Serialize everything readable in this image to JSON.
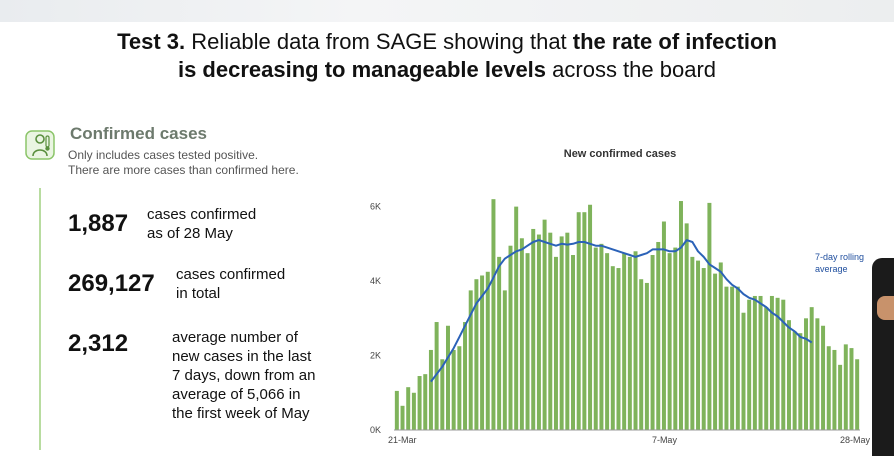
{
  "headline": {
    "prefix_bold": "Test 3.",
    "part1": " Reliable data from SAGE showing that ",
    "bold1": "the rate of infection",
    "bold2": "is decreasing to manageable levels",
    "suffix": " across the board"
  },
  "panel": {
    "icon": "thermometer-person-icon",
    "title": "Confirmed cases",
    "subtitle_line1": "Only includes cases tested positive.",
    "subtitle_line2": "There are more cases than confirmed here."
  },
  "stats": [
    {
      "value": "1,887",
      "label_line1": "cases confirmed",
      "label_line2": "as of 28 May"
    },
    {
      "value": "269,127",
      "label_line1": "cases confirmed",
      "label_line2": "in total"
    },
    {
      "value": "2,312",
      "label_line1": "average number of",
      "label_line2": "new cases in the last",
      "label_line3": "7 days, down from an",
      "label_line4": "average of 5,066 in",
      "label_line5": "the first week of May"
    }
  ],
  "colors": {
    "bar": "#7fb35b",
    "rolling_line": "#2b62b8",
    "accent_green": "#8cc56a"
  },
  "chart_data": {
    "type": "bar",
    "title": "New confirmed cases",
    "x_start": "21-Mar",
    "x_ticks": [
      "21-Mar",
      "7-May",
      "28-May"
    ],
    "y_ticks": [
      "0K",
      "2K",
      "4K",
      "6K"
    ],
    "ylim": [
      0,
      6500
    ],
    "annotation": [
      "7-day rolling",
      "average"
    ],
    "series": [
      {
        "kind": "bar",
        "values": [
          1050,
          650,
          1150,
          1000,
          1450,
          1500,
          2150,
          2900,
          1900,
          2800,
          2150,
          2250,
          2900,
          3750,
          4050,
          4150,
          4250,
          6200,
          4650,
          3750,
          4950,
          6000,
          5150,
          4750,
          5400,
          5250,
          5650,
          5300,
          4650,
          5200,
          5300,
          4700,
          5850,
          5850,
          6050,
          4900,
          5000,
          4750,
          4400,
          4350,
          4750,
          4650,
          4800,
          4050,
          3950,
          4700,
          5050,
          5600,
          4750,
          4900,
          6150,
          5550,
          4650,
          4550,
          4350,
          6100,
          4200,
          4500,
          3850,
          3850,
          3850,
          3150,
          3500,
          3600,
          3600,
          3300,
          3600,
          3550,
          3500,
          2950,
          2650,
          2600,
          3000,
          3300,
          3000,
          2800,
          2250,
          2150,
          1750,
          2300,
          2200,
          1900
        ]
      },
      {
        "kind": "line",
        "name": "7-day rolling average",
        "values": [
          1300,
          1500,
          1700,
          1950,
          2200,
          2500,
          2800,
          3100,
          3400,
          3600,
          3800,
          4100,
          4400,
          4600,
          4700,
          4800,
          4850,
          4950,
          5050,
          5100,
          5050,
          5000,
          4950,
          5000,
          4980,
          5000,
          5050,
          5050,
          5000,
          4950,
          4950,
          4900,
          4850,
          4800,
          4750,
          4700,
          4650,
          4700,
          4750,
          4850,
          4850,
          4850,
          4800,
          4800,
          4900,
          5100,
          5050,
          4800,
          4650,
          4450,
          4350,
          4250,
          4050,
          3900,
          3800,
          3650,
          3550,
          3500,
          3400,
          3300,
          3150,
          3050,
          2900,
          2750,
          2650,
          2500,
          2450,
          2350
        ]
      }
    ]
  }
}
